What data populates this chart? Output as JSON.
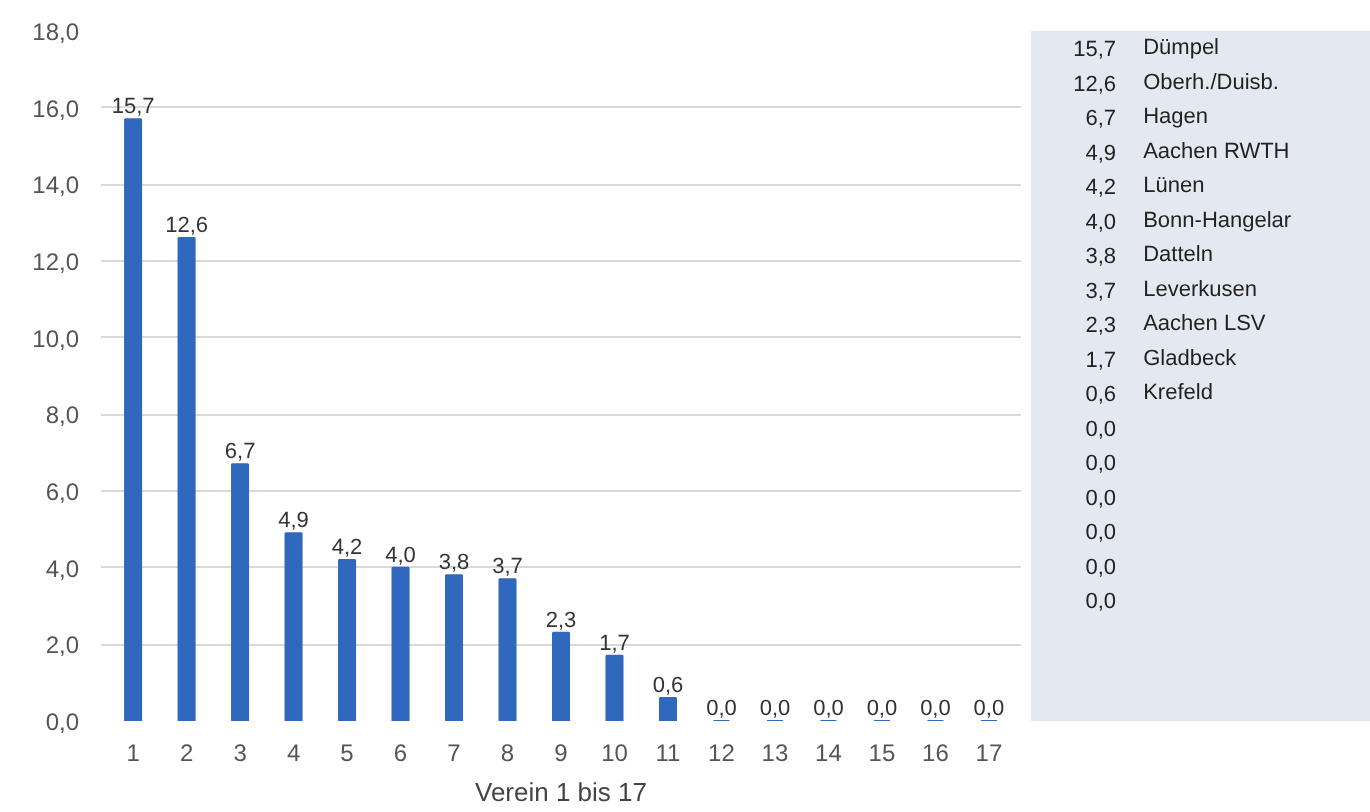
{
  "chart_data": [
    {
      "type": "bar",
      "xlabel": "Verein 1 bis 17",
      "x": [
        1,
        2,
        3,
        4,
        5,
        6,
        7,
        8,
        9,
        10,
        11,
        12,
        13,
        14,
        15,
        16,
        17
      ],
      "values": [
        15.7,
        12.6,
        6.7,
        4.9,
        4.2,
        4.0,
        3.8,
        3.7,
        2.3,
        1.7,
        0.6,
        0.0,
        0.0,
        0.0,
        0.0,
        0.0,
        0.0
      ],
      "value_labels": [
        "15,7",
        "12,6",
        "6,7",
        "4,9",
        "4,2",
        "4,0",
        "3,8",
        "3,7",
        "2,3",
        "1,7",
        "0,6",
        "0,0",
        "0,0",
        "0,0",
        "0,0",
        "0,0",
        "0,0"
      ],
      "color": "#3068be",
      "xlim": [
        0.4,
        17.6
      ],
      "xticks": [
        1,
        2,
        3,
        4,
        5,
        6,
        7,
        8,
        9,
        10,
        11,
        12,
        13,
        14,
        15,
        16,
        17
      ],
      "ylim": [
        0,
        18
      ],
      "yticks": [
        {
          "value": 0,
          "label": "0,0"
        },
        {
          "value": 2,
          "label": "2,0"
        },
        {
          "value": 4,
          "label": "4,0"
        },
        {
          "value": 6,
          "label": "6,0"
        },
        {
          "value": 8,
          "label": "8,0"
        },
        {
          "value": 10,
          "label": "10,0"
        },
        {
          "value": 12,
          "label": "12,0"
        },
        {
          "value": 14,
          "label": "14,0"
        },
        {
          "value": 16,
          "label": "16,0"
        },
        {
          "value": 18,
          "label": "18,0"
        }
      ],
      "grid": "y"
    },
    {
      "type": "other",
      "categories": [
        "Dümpel",
        "Oberh./Duisb.",
        "Hagen",
        "Aachen RWTH",
        "Lünen",
        "Bonn-Hangelar",
        "Datteln",
        "Leverkusen",
        "Aachen LSV",
        "Gladbeck",
        "Krefeld",
        null,
        null,
        null,
        null,
        null,
        null
      ],
      "values": [
        15.7,
        12.6,
        6.7,
        4.9,
        4.2,
        4.0,
        3.8,
        3.7,
        2.3,
        1.7,
        0.6,
        0.0,
        0.0,
        0.0,
        0.0,
        0.0,
        0.0
      ],
      "value_labels": [
        "15,7",
        "12,6",
        "6,7",
        "4,9",
        "4,2",
        "4,0",
        "3,8",
        "3,7",
        "2,3",
        "1,7",
        "0,6",
        "0,0",
        "0,0",
        "0,0",
        "0,0",
        "0,0",
        "0,0"
      ]
    }
  ]
}
